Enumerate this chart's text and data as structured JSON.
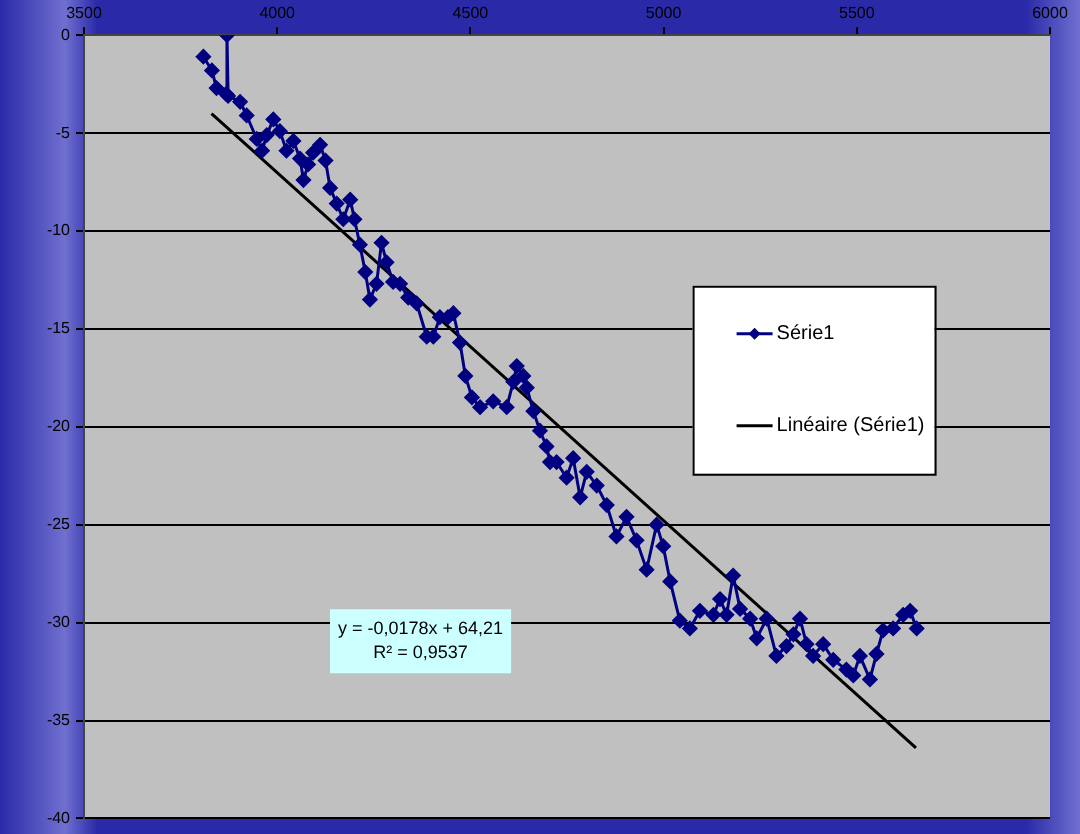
{
  "chart_data": {
    "type": "scatter",
    "xlim": [
      3500,
      6000
    ],
    "xticks": [
      3500,
      4000,
      4500,
      5000,
      5500,
      6000
    ],
    "ylim": [
      -40,
      0
    ],
    "yticks": [
      0,
      -5,
      -10,
      -15,
      -20,
      -25,
      -30,
      -35,
      -40
    ],
    "grid": "y",
    "legend": "right",
    "marker": "diamond",
    "line_style": "solid",
    "annotations": [
      "y = -0,0178x + 64,21",
      "R² = 0,9537"
    ],
    "series": [
      {
        "name": "Série1",
        "type": "line",
        "color": "#000080",
        "x": [
          3809,
          3831,
          3843,
          3868,
          3870,
          3873,
          3904,
          3921,
          3947,
          3961,
          3973,
          3990,
          4007,
          4024,
          4042,
          4059,
          4068,
          4080,
          4093,
          4111,
          4125,
          4137,
          4154,
          4171,
          4189,
          4200,
          4214,
          4228,
          4240,
          4257,
          4270,
          4283,
          4300,
          4318,
          4339,
          4361,
          4387,
          4404,
          4421,
          4442,
          4456,
          4473,
          4487,
          4504,
          4525,
          4559,
          4594,
          4611,
          4620,
          4637,
          4646,
          4663,
          4680,
          4697,
          4706,
          4723,
          4749,
          4766,
          4784,
          4801,
          4827,
          4853,
          4878,
          4904,
          4930,
          4956,
          4982,
          4999,
          5017,
          5042,
          5068,
          5094,
          5129,
          5146,
          5163,
          5180,
          5198,
          5224,
          5241,
          5267,
          5292,
          5318,
          5336,
          5353,
          5370,
          5387,
          5413,
          5439,
          5473,
          5491,
          5508,
          5534,
          5551,
          5568,
          5594,
          5620,
          5638,
          5655
        ],
        "values": [
          -1.1,
          -1.8,
          -2.7,
          -3.0,
          0,
          -3.1,
          -3.4,
          -4.1,
          -5.3,
          -5.9,
          -5.1,
          -4.3,
          -4.9,
          -5.9,
          -5.4,
          -6.3,
          -7.4,
          -6.6,
          -6.0,
          -5.6,
          -6.4,
          -7.8,
          -8.6,
          -9.4,
          -8.4,
          -9.4,
          -10.7,
          -12.1,
          -13.5,
          -12.7,
          -10.6,
          -11.6,
          -12.6,
          -12.7,
          -13.4,
          -13.7,
          -15.4,
          -15.4,
          -14.4,
          -14.4,
          -14.2,
          -15.7,
          -17.4,
          -18.5,
          -19.0,
          -18.7,
          -19.0,
          -17.7,
          -16.9,
          -17.4,
          -18.0,
          -19.2,
          -20.2,
          -21.0,
          -21.8,
          -21.8,
          -22.6,
          -21.6,
          -23.6,
          -22.3,
          -23.0,
          -24.0,
          -25.6,
          -24.6,
          -25.8,
          -27.3,
          -25.0,
          -26.1,
          -27.9,
          -29.9,
          -30.3,
          -29.4,
          -29.6,
          -28.8,
          -29.6,
          -27.6,
          -29.3,
          -29.8,
          -30.8,
          -29.8,
          -31.7,
          -31.2,
          -30.6,
          -29.8,
          -31.1,
          -31.7,
          -31.1,
          -31.9,
          -32.4,
          -32.7,
          -31.7,
          -32.9,
          -31.6,
          -30.4,
          -30.3,
          -29.6,
          -29.4,
          -30.3
        ]
      },
      {
        "name": "Linéaire (Série1)",
        "type": "line",
        "color": "#000000",
        "marker": "none",
        "x": [
          3830,
          5653
        ],
        "values": [
          -4.0,
          -36.4
        ]
      }
    ]
  }
}
